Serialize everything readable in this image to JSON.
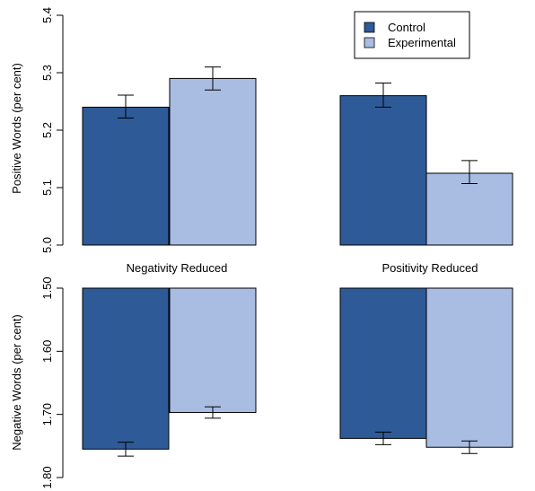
{
  "colors": {
    "control": "#2e5a97",
    "experimental": "#a9bde3",
    "axis": "#000000"
  },
  "legend": {
    "placement": "top-right",
    "entries": [
      "Control",
      "Experimental"
    ]
  },
  "chart_data": [
    {
      "type": "bar",
      "panel": "top",
      "groups": [
        "",
        ""
      ],
      "ylabel": "Positive Words (per cent)",
      "ylim": [
        5.0,
        5.4
      ],
      "y_ticks": [
        "5.0",
        "5.1",
        "5.2",
        "5.3",
        "5.4"
      ],
      "series": [
        {
          "name": "Control",
          "values": [
            5.24,
            5.26
          ],
          "err_low": [
            5.221,
            5.24
          ],
          "err_high": [
            5.261,
            5.282
          ]
        },
        {
          "name": "Experimental",
          "values": [
            5.29,
            5.125
          ],
          "err_low": [
            5.27,
            5.107
          ],
          "err_high": [
            5.31,
            5.147
          ]
        }
      ]
    },
    {
      "type": "bar",
      "panel": "bottom",
      "groups": [
        "Negativity Reduced",
        "Positivity Reduced"
      ],
      "ylabel": "Negative Words (per cent)",
      "ylim": [
        1.5,
        1.8
      ],
      "y_reversed": true,
      "y_ticks": [
        "1.50",
        "1.60",
        "1.70",
        "1.80"
      ],
      "series": [
        {
          "name": "Control",
          "values": [
            1.755,
            1.738
          ],
          "err_low": [
            1.744,
            1.728
          ],
          "err_high": [
            1.766,
            1.748
          ]
        },
        {
          "name": "Experimental",
          "values": [
            1.697,
            1.752
          ],
          "err_low": [
            1.688,
            1.742
          ],
          "err_high": [
            1.706,
            1.762
          ]
        }
      ]
    }
  ]
}
